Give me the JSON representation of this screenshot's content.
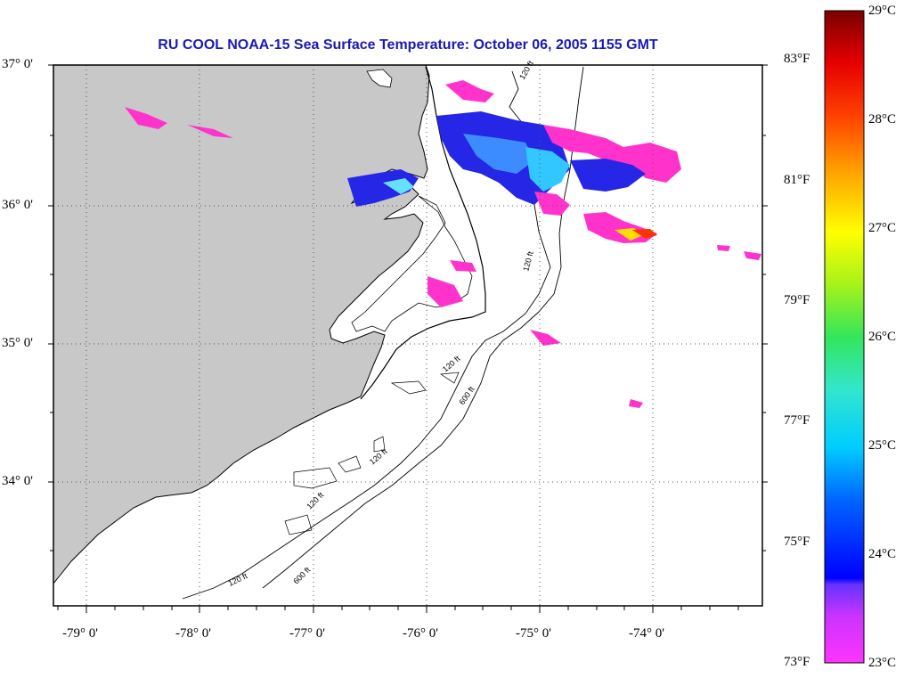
{
  "title": "RU COOL  NOAA-15  Sea Surface Temperature:  October 06, 2005 1155 GMT",
  "colors": {
    "title": "#1a1ab8",
    "land": "#c8c8c8",
    "grid": "#555555"
  },
  "latitude_labels": [
    "37° 0'",
    "36° 0'",
    "35° 0'",
    "34° 0'"
  ],
  "longitude_labels": [
    "-79° 0'",
    "-78° 0'",
    "-77° 0'",
    "-76° 0'",
    "-75° 0'",
    "-74° 0'"
  ],
  "bathymetry_labels": [
    "120 ft",
    "120 ft",
    "120 ft",
    "120 ft",
    "120 ft",
    "600 ft",
    "120 ft",
    "600 ft"
  ],
  "colorbar": {
    "fahrenheit": [
      "83°F",
      "81°F",
      "79°F",
      "77°F",
      "75°F",
      "73°F"
    ],
    "celsius": [
      "29°C",
      "28°C",
      "27°C",
      "26°C",
      "25°C",
      "24°C",
      "23°C"
    ],
    "range_c": [
      23,
      29
    ]
  }
}
